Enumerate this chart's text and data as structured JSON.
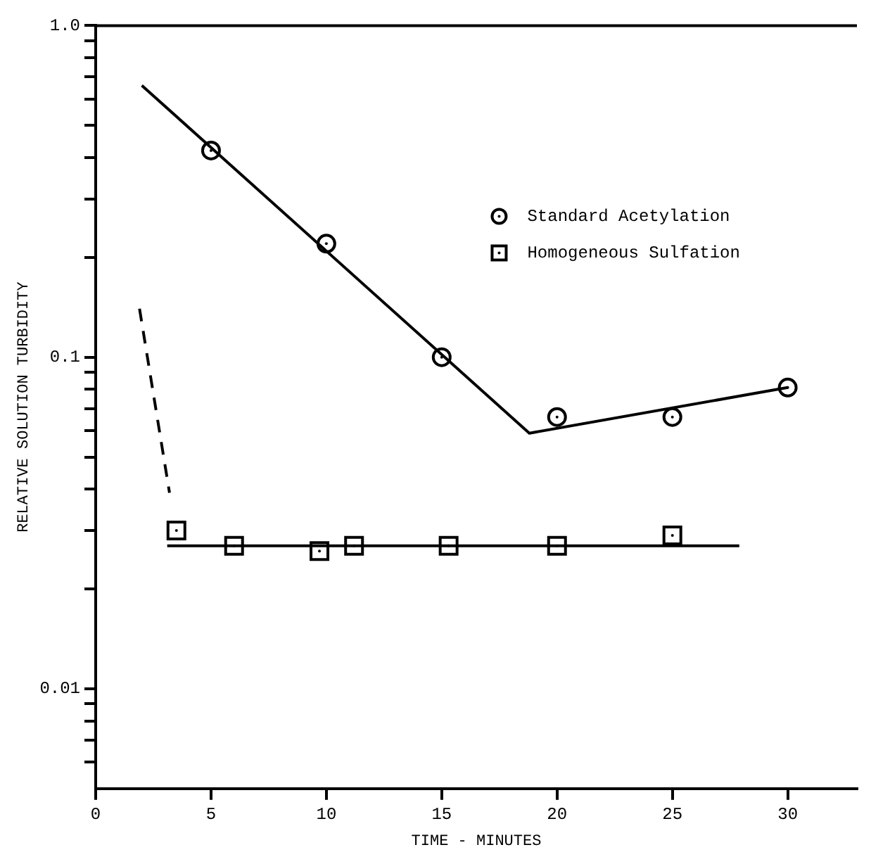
{
  "chart_data": {
    "type": "scatter",
    "xlabel": "TIME - MINUTES",
    "ylabel": "RELATIVE SOLUTION TURBIDITY",
    "xlim": [
      0,
      33
    ],
    "xticks": [
      0,
      5,
      10,
      15,
      20,
      25,
      30
    ],
    "ylim": [
      0.005,
      1
    ],
    "log": "y",
    "yticks": [
      {
        "value": 0.006,
        "label": null
      },
      {
        "value": 0.007,
        "label": null
      },
      {
        "value": 0.008,
        "label": null
      },
      {
        "value": 0.009,
        "label": null
      },
      0.01,
      {
        "value": 0.02,
        "label": null
      },
      {
        "value": 0.03,
        "label": null
      },
      {
        "value": 0.04,
        "label": null
      },
      {
        "value": 0.05,
        "label": null
      },
      {
        "value": 0.06,
        "label": null
      },
      {
        "value": 0.07,
        "label": null
      },
      {
        "value": 0.08,
        "label": null
      },
      {
        "value": 0.09,
        "label": null
      },
      0.1,
      {
        "value": 0.2,
        "label": null
      },
      {
        "value": 0.3,
        "label": null
      },
      {
        "value": 0.4,
        "label": null
      },
      {
        "value": 0.5,
        "label": null
      },
      {
        "value": 0.6,
        "label": null
      },
      {
        "value": 0.7,
        "label": null
      },
      {
        "value": 0.8,
        "label": null
      },
      {
        "value": 0.9,
        "label": null
      },
      {
        "value": 1,
        "label": "1.0"
      }
    ],
    "grid": false,
    "legend": "top right",
    "series": [
      {
        "name": "Standard Acetylation",
        "marker": "circle",
        "color": "#000000",
        "x": [
          5,
          10,
          15,
          20,
          25,
          30
        ],
        "values": [
          0.42,
          0.22,
          0.1,
          0.066,
          0.066,
          0.081
        ]
      },
      {
        "name": "Homogeneous Sulfation",
        "marker": "square",
        "color": "#000000",
        "x": [
          3.5,
          6,
          9.7,
          11.2,
          15.3,
          20,
          25
        ],
        "values": [
          0.03,
          0.027,
          0.026,
          0.027,
          0.027,
          0.027,
          0.029
        ]
      },
      {
        "type": "line",
        "marker": "none",
        "line_style": "solid",
        "color": "#000000",
        "x": [
          2,
          18.8,
          30
        ],
        "values": [
          0.66,
          0.059,
          0.081
        ]
      },
      {
        "type": "line",
        "marker": "none",
        "line_style": "solid",
        "color": "#000000",
        "x": [
          3.1,
          27.9
        ],
        "values": [
          0.027,
          0.027
        ]
      },
      {
        "type": "line",
        "marker": "none",
        "line_style": "dashed",
        "color": "#000000",
        "x": [
          1.9,
          3.2
        ],
        "values": [
          0.14,
          0.039
        ]
      }
    ]
  }
}
